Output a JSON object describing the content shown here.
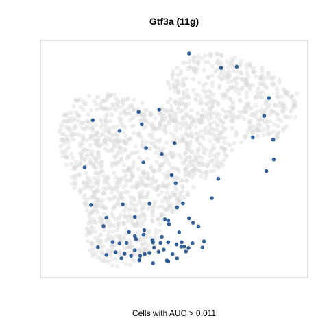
{
  "chart_data": {
    "type": "scatter",
    "title": "Gtf3a (11g)",
    "xlabel": "Cells with AUC > 0.011",
    "ylabel": "",
    "axes_visible": false,
    "grid": false,
    "xlim": [
      0,
      100
    ],
    "ylim": [
      0,
      100
    ],
    "colors": {
      "background_cells": "#d9d9d9",
      "high_auc_cells": "#1f4e8c",
      "panel_border": "#c8c8c8"
    },
    "series": [
      {
        "name": "",
        "role": "background",
        "color": "#d9d9d9",
        "opacity": 0.45,
        "region_shape_points": [
          [
            6,
            62
          ],
          [
            8,
            70
          ],
          [
            14,
            76
          ],
          [
            22,
            78
          ],
          [
            30,
            77
          ],
          [
            38,
            74
          ],
          [
            42,
            70
          ],
          [
            46,
            73
          ],
          [
            48,
            78
          ],
          [
            47,
            85
          ],
          [
            52,
            91
          ],
          [
            62,
            95
          ],
          [
            72,
            94
          ],
          [
            82,
            90
          ],
          [
            90,
            84
          ],
          [
            96,
            78
          ],
          [
            96,
            68
          ],
          [
            92,
            62
          ],
          [
            88,
            58
          ],
          [
            82,
            60
          ],
          [
            74,
            56
          ],
          [
            68,
            47
          ],
          [
            60,
            40
          ],
          [
            55,
            34
          ],
          [
            50,
            28
          ],
          [
            45,
            17
          ],
          [
            38,
            6
          ],
          [
            28,
            4
          ],
          [
            20,
            8
          ],
          [
            16,
            16
          ],
          [
            18,
            26
          ],
          [
            14,
            34
          ],
          [
            10,
            44
          ]
        ]
      },
      {
        "name": "",
        "role": "highlighted",
        "color": "#1f4e8c",
        "opacity": 0.9,
        "x": [
          55.6,
          67.6,
          73.4,
          36.7,
          85.5,
          83.7,
          79.4,
          37.9,
          44.4,
          50.2,
          19.6,
          29.6,
          39.5,
          38.5,
          87.3,
          84.5,
          16.5,
          45.4,
          64.1,
          87.1,
          18.9,
          24.7,
          30.8,
          35.3,
          40.8,
          47.8,
          53.3,
          51.1,
          46.6,
          55.6,
          59.1,
          61.2,
          23.6,
          33.1,
          35.8,
          38.8,
          41.9,
          45.4,
          48.1,
          51.9,
          52.8,
          57.1,
          60.6,
          27.0,
          29.6,
          32.2,
          35.3,
          38.6,
          42.1,
          44.9,
          47.8,
          50.9,
          53.8,
          56.9,
          24.7,
          28.1,
          31.5,
          35.3,
          39.0,
          42.5,
          46.1,
          49.4,
          52.7,
          55.4,
          30.3,
          33.9,
          37.3,
          40.8,
          44.2,
          47.8,
          51.1,
          54.4,
          37.0,
          42.1,
          47.3,
          21.5,
          66.5,
          49.1,
          50.6
        ],
        "y": [
          94.5,
          88.4,
          88.9,
          69.8,
          75.7,
          68.2,
          59.1,
          64.6,
          70.8,
          56.7,
          66.4,
          61.9,
          54.6,
          48.5,
          49.8,
          44.9,
          46.5,
          52.1,
          33.5,
          58.2,
          30.7,
          25.3,
          30.9,
          25.6,
          31.2,
          24.1,
          31.3,
          29.6,
          24.6,
          25.0,
          21.6,
          15.3,
          21.7,
          19.2,
          16.2,
          20.1,
          15.8,
          17.2,
          22.5,
          19.1,
          14.9,
          23.1,
          12.7,
          15.0,
          14.4,
          14.6,
          17.5,
          18.1,
          14.8,
          14.6,
          14.9,
          14.0,
          13.1,
          14.5,
          9.6,
          10.7,
          10.1,
          11.5,
          9.9,
          12.6,
          11.8,
          9.9,
          13.0,
          12.5,
          8.1,
          9.2,
          9.2,
          10.4,
          10.9,
          6.8,
          8.1,
          11.0,
          7.3,
          6.1,
          7.2,
          12.8,
          41.7,
          43.2,
          39.8
        ]
      }
    ]
  }
}
